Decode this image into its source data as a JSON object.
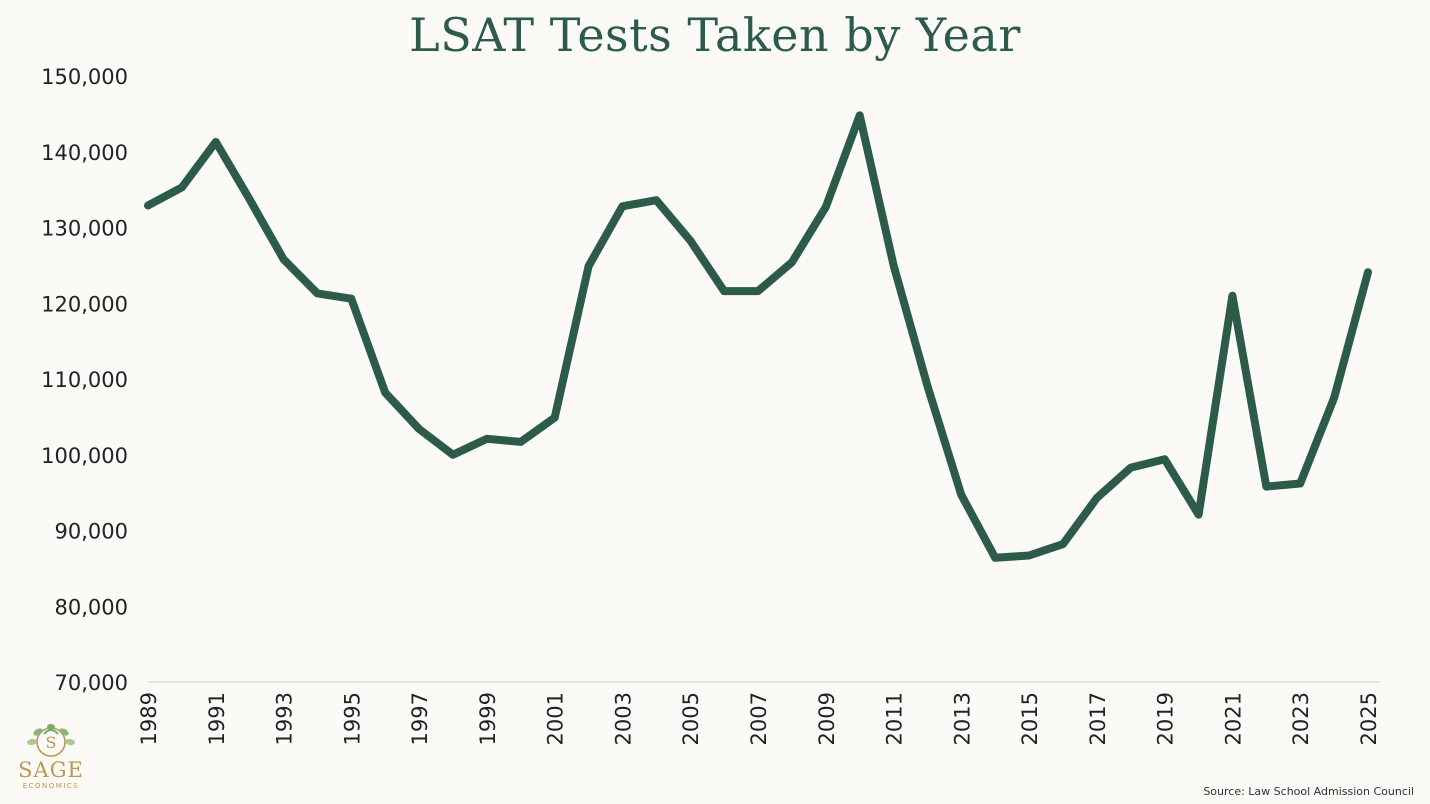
{
  "chart_data": {
    "type": "line",
    "title": "LSAT Tests Taken by Year",
    "xlabel": "",
    "ylabel": "",
    "ylim": [
      70000,
      150000
    ],
    "yticks": [
      70000,
      80000,
      90000,
      100000,
      110000,
      120000,
      130000,
      140000,
      150000
    ],
    "ytick_labels": [
      "70,000",
      "80,000",
      "90,000",
      "100,000",
      "110,000",
      "120,000",
      "130,000",
      "140,000",
      "150,000"
    ],
    "xtick_labels": [
      "1989",
      "1991",
      "1993",
      "1995",
      "1997",
      "1999",
      "2001",
      "2003",
      "2005",
      "2007",
      "2009",
      "2011",
      "2013",
      "2015",
      "2017",
      "2019",
      "2021",
      "2023",
      "2025"
    ],
    "x": [
      1989,
      1990,
      1991,
      1992,
      1993,
      1994,
      1995,
      1996,
      1997,
      1998,
      1999,
      2000,
      2001,
      2002,
      2003,
      2004,
      2005,
      2006,
      2007,
      2008,
      2009,
      2010,
      2011,
      2012,
      2013,
      2014,
      2015,
      2016,
      2017,
      2018,
      2019,
      2020,
      2021,
      2022,
      2023,
      2024,
      2025
    ],
    "series": [
      {
        "name": "LSAT Tests Taken",
        "color": "#2d5b4a",
        "values": [
          132900,
          135300,
          141300,
          133700,
          125800,
          121300,
          120600,
          108200,
          103400,
          100000,
          102100,
          101700,
          104900,
          124900,
          132800,
          133600,
          128300,
          121600,
          121600,
          125400,
          132700,
          144800,
          125000,
          109100,
          94700,
          86400,
          86700,
          88200,
          94300,
          98300,
          99400,
          92100,
          121000,
          95800,
          96200,
          107500,
          124100
        ]
      }
    ],
    "grid": false
  },
  "source": "Source: Law School Admission Council",
  "logo": {
    "word": "SAGE",
    "sub": "ECONOMICS",
    "color": "#b99a4e"
  }
}
